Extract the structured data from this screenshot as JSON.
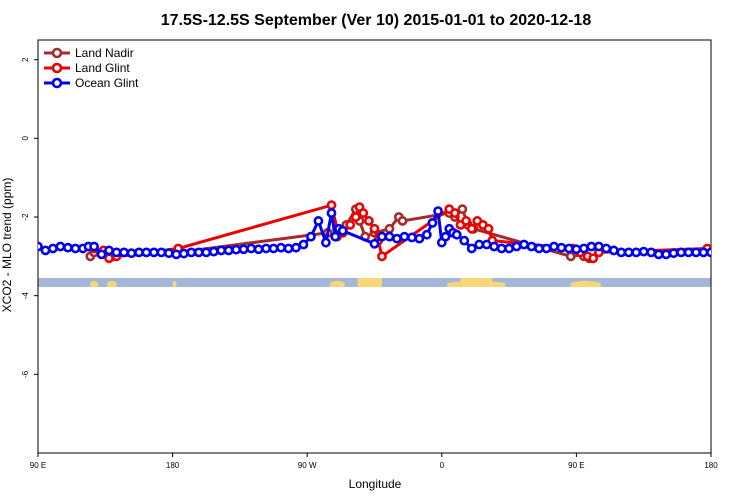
{
  "chart_data": {
    "type": "line",
    "title": "17.5S-12.5S September (Ver 10)   2015-01-01 to 2020-12-18",
    "xlabel": "Longitude",
    "ylabel": "XCO2 - MLO trend (ppm)",
    "xlim": [
      -180,
      180
    ],
    "ylim": [
      -8,
      2.5
    ],
    "x_ticks": [
      {
        "value": -180,
        "label": "90 E"
      },
      {
        "value": -108,
        "label": "180"
      },
      {
        "value": -36,
        "label": "90 W"
      },
      {
        "value": 36,
        "label": "0"
      },
      {
        "value": 108,
        "label": "90 E"
      },
      {
        "value": 180,
        "label": "180"
      }
    ],
    "y_ticks": [
      {
        "value": 2,
        "label": "2"
      },
      {
        "value": 0,
        "label": "0"
      },
      {
        "value": -2,
        "label": "-2"
      },
      {
        "value": -4,
        "label": "-4"
      },
      {
        "value": -6,
        "label": "-6"
      }
    ],
    "grid": false,
    "legend_position": "top-left",
    "series": [
      {
        "name": "Land Nadir",
        "color": "#a52a2a",
        "x": [
          -152,
          -150,
          -145,
          -140,
          -105,
          -25,
          -20,
          -15,
          -10,
          -8,
          -5,
          0,
          8,
          13,
          15,
          40,
          43,
          47,
          50,
          53,
          105,
          108,
          112,
          115
        ],
        "y": [
          -3.0,
          -2.9,
          -2.9,
          -3.0,
          -2.9,
          -2.4,
          -2.5,
          -2.2,
          -1.8,
          -2.1,
          -2.5,
          -2.4,
          -2.3,
          -2.0,
          -2.1,
          -1.9,
          -2.0,
          -1.8,
          -2.2,
          -2.3,
          -3.0,
          -2.9,
          -3.0,
          -3.05
        ]
      },
      {
        "name": "Land Glint",
        "color": "#ee0000",
        "x": [
          -150,
          -145,
          -142,
          -138,
          -105,
          -23,
          -20,
          -17,
          -13,
          -10,
          -8,
          -6,
          -3,
          0,
          2,
          4,
          40,
          43,
          46,
          49,
          52,
          55,
          58,
          61,
          63,
          106,
          110,
          114,
          117,
          120,
          178
        ],
        "y": [
          -2.8,
          -2.85,
          -3.05,
          -3.0,
          -2.8,
          -1.7,
          -2.3,
          -2.4,
          -2.2,
          -2.0,
          -1.75,
          -1.9,
          -2.1,
          -2.3,
          -2.6,
          -3.0,
          -1.8,
          -1.9,
          -2.2,
          -2.1,
          -2.3,
          -2.1,
          -2.2,
          -2.3,
          -2.6,
          -2.8,
          -2.9,
          -3.0,
          -3.05,
          -2.9,
          -2.8
        ]
      },
      {
        "name": "Ocean Glint",
        "color": "#0000ee",
        "x": [
          -180,
          -176,
          -172,
          -168,
          -164,
          -160,
          -156,
          -153,
          -150,
          -146,
          -142,
          -138,
          -134,
          -130,
          -126,
          -122,
          -118,
          -114,
          -110,
          -106,
          -102,
          -98,
          -94,
          -90,
          -86,
          -82,
          -78,
          -74,
          -70,
          -66,
          -62,
          -58,
          -54,
          -50,
          -46,
          -42,
          -38,
          -34,
          -30,
          -26,
          -23,
          -21,
          -19,
          -17,
          0,
          4,
          8,
          12,
          16,
          20,
          24,
          28,
          31,
          34,
          36,
          38,
          40,
          42,
          44,
          48,
          52,
          56,
          60,
          64,
          68,
          72,
          76,
          80,
          84,
          88,
          92,
          96,
          100,
          104,
          108,
          112,
          116,
          120,
          124,
          128,
          132,
          136,
          140,
          144,
          148,
          152,
          156,
          160,
          164,
          168,
          172,
          176,
          180
        ],
        "y": [
          -2.75,
          -2.85,
          -2.8,
          -2.75,
          -2.78,
          -2.8,
          -2.8,
          -2.75,
          -2.75,
          -2.95,
          -2.85,
          -2.9,
          -2.9,
          -2.92,
          -2.9,
          -2.9,
          -2.9,
          -2.9,
          -2.92,
          -2.95,
          -2.93,
          -2.9,
          -2.9,
          -2.9,
          -2.88,
          -2.85,
          -2.85,
          -2.83,
          -2.82,
          -2.8,
          -2.82,
          -2.8,
          -2.8,
          -2.78,
          -2.8,
          -2.78,
          -2.7,
          -2.5,
          -2.1,
          -2.65,
          -1.9,
          -2.5,
          -2.3,
          -2.35,
          -2.68,
          -2.5,
          -2.5,
          -2.55,
          -2.5,
          -2.52,
          -2.55,
          -2.45,
          -2.15,
          -1.85,
          -2.65,
          -2.5,
          -2.3,
          -2.4,
          -2.45,
          -2.6,
          -2.8,
          -2.7,
          -2.7,
          -2.75,
          -2.8,
          -2.8,
          -2.75,
          -2.7,
          -2.75,
          -2.8,
          -2.8,
          -2.75,
          -2.78,
          -2.8,
          -2.82,
          -2.8,
          -2.75,
          -2.75,
          -2.8,
          -2.85,
          -2.9,
          -2.9,
          -2.9,
          -2.88,
          -2.9,
          -2.95,
          -2.95,
          -2.92,
          -2.9,
          -2.9,
          -2.9,
          -2.9,
          -2.9
        ]
      }
    ],
    "land_mask": {
      "y_top": -3.55,
      "y_bottom": -3.78,
      "ocean_color": "#a3b8d9",
      "land_color": "#f8d778",
      "land_lon_ranges": [
        [
          -152,
          -148
        ],
        [
          -143,
          -138
        ],
        [
          -108,
          -106
        ],
        [
          -24,
          -16
        ],
        [
          -6,
          4
        ],
        [
          39,
          70
        ],
        [
          105,
          121
        ]
      ],
      "land_full_ranges": [
        [
          -9,
          4
        ],
        [
          46,
          63
        ]
      ]
    }
  }
}
